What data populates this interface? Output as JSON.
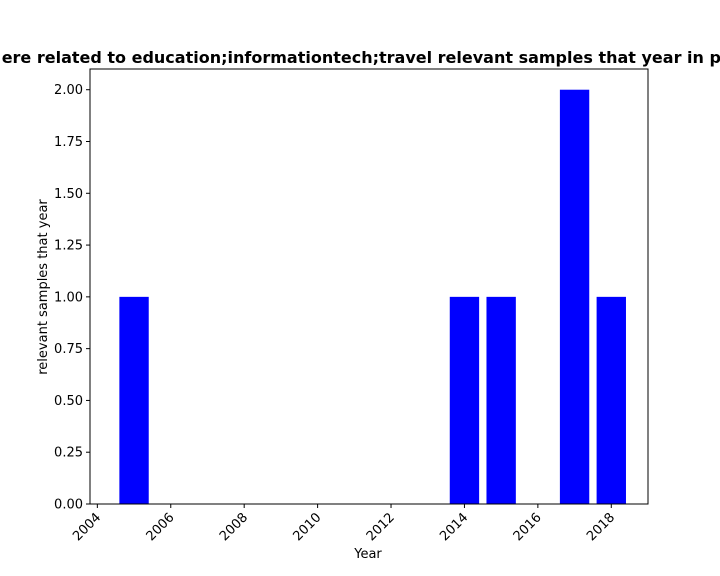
{
  "chart_data": {
    "type": "bar",
    "title": "ere related to education;informationtech;travel relevant samples that year in pri",
    "xlabel": "Year",
    "ylabel": "relevant samples that year",
    "x": [
      2005,
      2014,
      2015,
      2017,
      2018
    ],
    "values": [
      1,
      1,
      1,
      2,
      1
    ],
    "xlim": [
      2003.8,
      2019.0
    ],
    "ylim": [
      0,
      2.1
    ],
    "x_ticks": [
      2004,
      2006,
      2008,
      2010,
      2012,
      2014,
      2016,
      2018
    ],
    "x_tick_labels": [
      "2004",
      "2006",
      "2008",
      "2010",
      "2012",
      "2014",
      "2016",
      "2018"
    ],
    "y_ticks": [
      0.0,
      0.25,
      0.5,
      0.75,
      1.0,
      1.25,
      1.5,
      1.75,
      2.0
    ],
    "y_tick_labels": [
      "0.00",
      "0.25",
      "0.50",
      "0.75",
      "1.00",
      "1.25",
      "1.50",
      "1.75",
      "2.00"
    ],
    "bar_color": "#0000ff",
    "grid": false,
    "legend": "none"
  }
}
